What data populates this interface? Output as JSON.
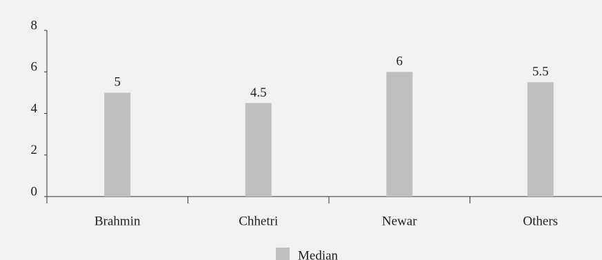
{
  "chart_data": {
    "type": "bar",
    "categories": [
      "Brahmin",
      "Chhetri",
      "Newar",
      "Others"
    ],
    "series": [
      {
        "name": "Median",
        "color": "#bfbfbf",
        "values": [
          5,
          4.5,
          6,
          5.5
        ]
      }
    ],
    "ylim": [
      0,
      8
    ],
    "yticks": [
      0,
      2,
      4,
      6,
      8
    ],
    "legend": "bottom"
  }
}
